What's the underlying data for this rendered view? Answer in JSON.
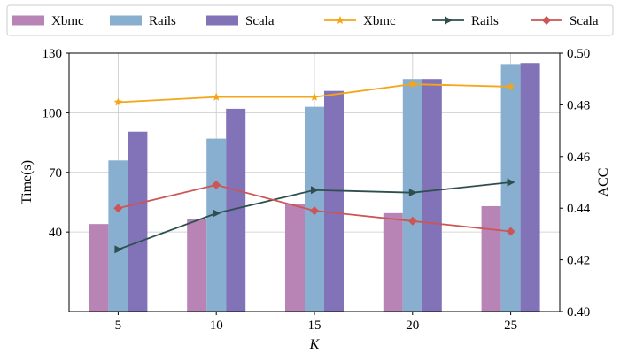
{
  "chart_data": {
    "type": "bar",
    "categories": [
      "5",
      "10",
      "15",
      "20",
      "25"
    ],
    "xlabel": "K",
    "ylabel_left": "Time(s)",
    "ylabel_right": "ACC",
    "ylim_left": [
      0,
      130
    ],
    "ylim_right": [
      0.4,
      0.5
    ],
    "yticks_left": [
      "40",
      "70",
      "100",
      "130"
    ],
    "yticks_right": [
      "0.40",
      "0.42",
      "0.44",
      "0.46",
      "0.48",
      "0.50"
    ],
    "grid": true,
    "legend_position": "top",
    "bar_series": [
      {
        "name": "Xbmc",
        "color": "#b784b5",
        "values": [
          44,
          46.5,
          54,
          49.5,
          53
        ]
      },
      {
        "name": "Rails",
        "color": "#88afd0",
        "values": [
          76,
          87,
          103,
          117,
          124.5
        ]
      },
      {
        "name": "Scala",
        "color": "#8273b9",
        "values": [
          90.5,
          102,
          111,
          117,
          125
        ]
      }
    ],
    "line_series": [
      {
        "name": "Xbmc",
        "color": "#f5a516",
        "marker": "star",
        "values": [
          0.481,
          0.483,
          0.483,
          0.488,
          0.487
        ]
      },
      {
        "name": "Rails",
        "color": "#2f4f4f",
        "marker": "triangle-right",
        "values": [
          0.424,
          0.438,
          0.447,
          0.446,
          0.45
        ]
      },
      {
        "name": "Scala",
        "color": "#cd5555",
        "marker": "diamond",
        "values": [
          0.44,
          0.449,
          0.439,
          0.435,
          0.431
        ]
      }
    ]
  }
}
